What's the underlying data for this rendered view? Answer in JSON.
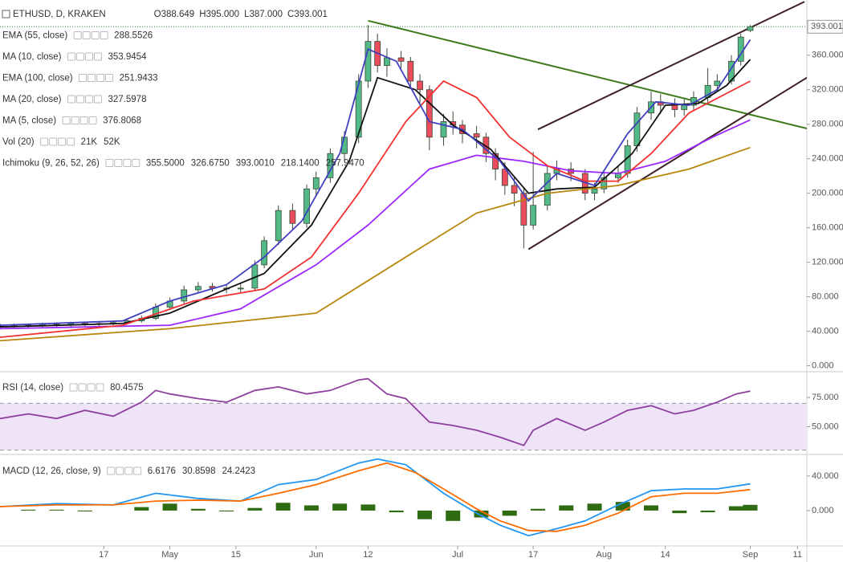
{
  "chart_data": [
    {
      "type": "candlestick",
      "title": "ETHUSD, D, KRAKEN",
      "ohlc": [
        "O388.649",
        "H395.000",
        "L387.000",
        "C393.001"
      ],
      "x": [
        -6,
        -3,
        0,
        3,
        6,
        9,
        12,
        15,
        18,
        21,
        24,
        27,
        30,
        33,
        36,
        39,
        42,
        45,
        48,
        50,
        53,
        56,
        59,
        61,
        64,
        67,
        70,
        72,
        74,
        76,
        79,
        81,
        83,
        85,
        88,
        90,
        92,
        95,
        97,
        99,
        101,
        103,
        105,
        107,
        110,
        112,
        115,
        118,
        120,
        122,
        125,
        127,
        129,
        132,
        134,
        137,
        139,
        141,
        144,
        146,
        149,
        151,
        153
      ],
      "open": [
        45,
        46,
        47,
        46,
        48,
        47,
        49,
        48,
        49,
        50,
        52,
        55,
        68,
        75,
        88,
        92,
        90,
        89,
        90,
        117,
        145,
        180,
        165,
        205,
        218,
        246,
        265,
        330,
        376,
        348,
        357,
        353,
        330,
        320,
        265,
        283,
        279,
        269,
        265,
        246,
        228,
        209,
        200,
        163,
        186,
        223,
        228,
        223,
        200,
        205,
        218,
        223,
        255,
        293,
        306,
        302,
        297,
        302,
        311,
        325,
        330,
        353,
        388.649
      ],
      "high": [
        49,
        49,
        49,
        50,
        50,
        51,
        51,
        51,
        52,
        55,
        58,
        72,
        79,
        93,
        97,
        96,
        94,
        95,
        122,
        150,
        186,
        188,
        210,
        225,
        252,
        272,
        338,
        395,
        385,
        368,
        365,
        358,
        338,
        325,
        292,
        295,
        285,
        278,
        270,
        252,
        236,
        218,
        206,
        248,
        232,
        238,
        236,
        228,
        212,
        224,
        232,
        262,
        300,
        318,
        315,
        310,
        309,
        318,
        345,
        338,
        360,
        385,
        395
      ],
      "low": [
        43,
        44,
        44,
        44,
        45,
        45,
        46,
        46,
        47,
        48,
        50,
        53,
        65,
        72,
        84,
        86,
        84,
        85,
        88,
        113,
        140,
        158,
        160,
        198,
        212,
        238,
        258,
        322,
        340,
        335,
        345,
        322,
        305,
        250,
        255,
        268,
        258,
        252,
        236,
        215,
        198,
        185,
        136,
        158,
        180,
        215,
        214,
        192,
        192,
        200,
        212,
        218,
        248,
        285,
        292,
        288,
        290,
        296,
        305,
        318,
        326,
        348,
        387
      ],
      "close": [
        46,
        47,
        46,
        48,
        47,
        49,
        48,
        49,
        50,
        52,
        55,
        68,
        75,
        88,
        92,
        90,
        89,
        90,
        117,
        145,
        180,
        165,
        205,
        218,
        246,
        265,
        330,
        376,
        348,
        357,
        353,
        330,
        320,
        265,
        283,
        279,
        269,
        265,
        246,
        228,
        209,
        200,
        163,
        186,
        223,
        228,
        223,
        200,
        205,
        218,
        223,
        255,
        293,
        306,
        302,
        297,
        302,
        311,
        325,
        330,
        353,
        381,
        393.001
      ],
      "up_color": "#53b987",
      "down_color": "#eb4d5c",
      "last_color": "#2e7d32",
      "xlim": [
        -6,
        165
      ],
      "ylim": [
        -6,
        424
      ],
      "yticks": [
        {
          "value": 0,
          "label": "0.000"
        },
        {
          "value": 40,
          "label": "40.000"
        },
        {
          "value": 80,
          "label": "80.000"
        },
        {
          "value": 120,
          "label": "120.000"
        },
        {
          "value": 160,
          "label": "160.000"
        },
        {
          "value": 200,
          "label": "200.000"
        },
        {
          "value": 240,
          "label": "240.000"
        },
        {
          "value": 280,
          "label": "280.000"
        },
        {
          "value": 320,
          "label": "320.000"
        },
        {
          "value": 360,
          "label": "360.000"
        }
      ],
      "series": [
        {
          "name": "EMA (55, close)",
          "readout": "288.5526",
          "color": "#9c27ff",
          "x": [
            -6,
            30,
            45,
            61,
            72,
            85,
            95,
            105,
            115,
            125,
            135,
            145,
            153
          ],
          "values": [
            43,
            47,
            66,
            117,
            163,
            228,
            244,
            237,
            226,
            223,
            237,
            265,
            285
          ]
        },
        {
          "name": "MA (10, close)",
          "readout": "353.9454",
          "color": "#111111",
          "x": [
            -6,
            20,
            30,
            42,
            50,
            60,
            68,
            74,
            82,
            90,
            98,
            106,
            112,
            120,
            128,
            135,
            142,
            148,
            153
          ],
          "values": [
            45,
            49,
            61,
            89,
            107,
            163,
            237,
            334,
            320,
            279,
            251,
            200,
            205,
            207,
            246,
            302,
            304,
            325,
            355
          ]
        },
        {
          "name": "EMA (100, close)",
          "readout": "251.9433",
          "color": "#b8860b",
          "x": [
            -6,
            30,
            61,
            80,
            95,
            110,
            125,
            140,
            153
          ],
          "values": [
            29,
            43,
            61,
            126,
            177,
            200,
            209,
            228,
            253
          ]
        },
        {
          "name": "MA (20, close)",
          "readout": "327.5978",
          "color": "#f23030",
          "x": [
            -6,
            20,
            35,
            50,
            60,
            70,
            80,
            88,
            95,
            102,
            110,
            118,
            125,
            132,
            140,
            153
          ],
          "values": [
            33,
            47,
            75,
            89,
            126,
            200,
            283,
            330,
            311,
            265,
            232,
            214,
            214,
            246,
            293,
            330
          ]
        },
        {
          "name": "MA (5, close)",
          "readout": "376.8068",
          "color": "#3f3fbf",
          "x": [
            -6,
            20,
            30,
            42,
            50,
            58,
            66,
            72,
            78,
            85,
            92,
            100,
            106,
            112,
            120,
            127,
            133,
            140,
            146,
            153
          ],
          "values": [
            47,
            52,
            75,
            94,
            126,
            168,
            246,
            367,
            353,
            283,
            274,
            237,
            191,
            223,
            209,
            269,
            306,
            302,
            320,
            378
          ]
        }
      ],
      "indicators": [
        {
          "name": "Vol (20)",
          "readouts": [
            {
              "text": "21K",
              "color": "#3a9a3a"
            },
            {
              "text": "52K",
              "color": "#2196f3"
            }
          ]
        },
        {
          "name": "Ichimoku (9, 26, 52, 26)",
          "readouts": [
            {
              "text": "355.5000",
              "color": "#2196f3"
            },
            {
              "text": "326.6750",
              "color": "#8b1a1a"
            },
            {
              "text": "393.0010",
              "color": "#3a8a3a"
            },
            {
              "text": "218.1400",
              "color": "#3a8a3a"
            },
            {
              "text": "257.9470",
              "color": "#c62828"
            }
          ]
        }
      ],
      "trendlines": [
        {
          "color": "#3d7a1e",
          "x": [
            72,
            165
          ],
          "y": [
            400,
            275
          ]
        },
        {
          "color": "#3e2027",
          "x": [
            108,
            164.5
          ],
          "y": [
            274,
            422
          ]
        },
        {
          "color": "#3e2027",
          "x": [
            106,
            165
          ],
          "y": [
            135,
            334
          ]
        }
      ]
    },
    {
      "type": "line",
      "xlim": [
        -6,
        165
      ],
      "ylim": [
        27,
        97
      ],
      "yticks": [
        {
          "value": 50,
          "label": "50.000"
        },
        {
          "value": 75,
          "label": "75.000"
        }
      ],
      "band": [
        30,
        70
      ],
      "band_color": "#efe3f7",
      "series": [
        {
          "name": "RSI (14, close)",
          "readout": "80.4575",
          "color": "#8e3f9e",
          "x": [
            -6,
            0,
            6,
            12,
            18,
            24,
            27,
            30,
            36,
            42,
            48,
            53,
            59,
            64,
            70,
            72,
            76,
            80,
            85,
            90,
            95,
            100,
            105,
            107,
            112,
            118,
            122,
            127,
            132,
            137,
            141,
            146,
            150,
            153
          ],
          "values": [
            57,
            61,
            57,
            64,
            59,
            71,
            81,
            78,
            74,
            71,
            81,
            84,
            78,
            81,
            90,
            91,
            78,
            74,
            54,
            51,
            47,
            41,
            34,
            47,
            57,
            47,
            54,
            64,
            68,
            61,
            64,
            71,
            78,
            80.4575
          ]
        }
      ]
    },
    {
      "type": "line",
      "xlim": [
        -6,
        165
      ],
      "ylim": [
        -40,
        64
      ],
      "yticks": [
        {
          "value": 0,
          "label": "0.000"
        },
        {
          "value": 40,
          "label": "40.000"
        }
      ],
      "xticks": [
        {
          "value": 16,
          "label": "17"
        },
        {
          "value": 30,
          "label": "May"
        },
        {
          "value": 44,
          "label": "15"
        },
        {
          "value": 61,
          "label": "Jun"
        },
        {
          "value": 72,
          "label": "12"
        },
        {
          "value": 91,
          "label": "Jul"
        },
        {
          "value": 107,
          "label": "17"
        },
        {
          "value": 122,
          "label": "Aug"
        },
        {
          "value": 135,
          "label": "14"
        },
        {
          "value": 153,
          "label": "Sep"
        },
        {
          "value": 163,
          "label": "11"
        }
      ],
      "series": [
        {
          "name": "MACD (12, 26, close, 9)",
          "type": "bar",
          "readout": "6.6176",
          "color": "#2e6b12",
          "x": [
            -6,
            0,
            6,
            12,
            18,
            24,
            30,
            36,
            42,
            48,
            54,
            60,
            66,
            72,
            78,
            84,
            90,
            96,
            102,
            108,
            114,
            120,
            126,
            132,
            138,
            144,
            150,
            153
          ],
          "values": [
            0,
            1,
            1,
            -1,
            0,
            4,
            8,
            2,
            -1,
            3,
            9,
            6,
            8,
            7,
            -2,
            -10,
            -12,
            -8,
            -6,
            2,
            6,
            8,
            10,
            6,
            -3,
            -2,
            5,
            6.6176
          ]
        },
        {
          "type": "line",
          "readout": "30.8598",
          "color": "#2196f3",
          "x": [
            -6,
            6,
            18,
            27,
            36,
            45,
            53,
            61,
            70,
            74,
            80,
            88,
            95,
            100,
            106,
            112,
            118,
            125,
            132,
            139,
            146,
            153
          ],
          "values": [
            4.6,
            8,
            6.5,
            20,
            14,
            11,
            30,
            36,
            55,
            59.5,
            53,
            20,
            -3,
            -17,
            -29,
            -21,
            -12,
            6.5,
            23,
            25,
            25,
            30.8598
          ]
        },
        {
          "type": "line",
          "readout": "24.2423",
          "color": "#ff6d00",
          "x": [
            -6,
            6,
            18,
            27,
            36,
            45,
            53,
            61,
            70,
            76,
            82,
            88,
            95,
            100,
            106,
            112,
            118,
            125,
            132,
            139,
            146,
            153
          ],
          "values": [
            4.6,
            6.5,
            6.5,
            11,
            12,
            11,
            20,
            30,
            46,
            55,
            44,
            25,
            2,
            -12,
            -23,
            -24,
            -17,
            -3,
            16,
            20,
            20,
            24.24
          ]
        }
      ]
    }
  ]
}
